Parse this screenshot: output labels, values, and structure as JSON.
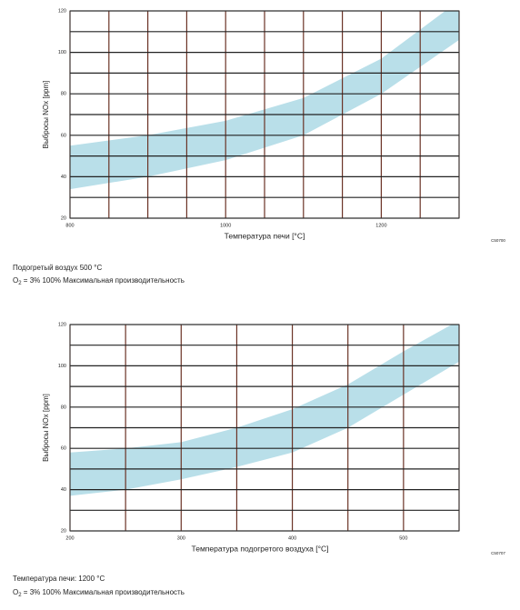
{
  "chart_data": [
    {
      "type": "band",
      "ylabel": "Выбросы NOx [ppm]",
      "xlabel": "Температура печи [°C]",
      "code": "C50700",
      "x": [
        800,
        900,
        1000,
        1100,
        1200,
        1300
      ],
      "upper": [
        55,
        60,
        67,
        78,
        97,
        125
      ],
      "lower": [
        34,
        40,
        48,
        60,
        80,
        106
      ],
      "color": "#b9dfe9",
      "xlim": [
        800,
        1300
      ],
      "xticks": [
        800,
        1000,
        1200
      ],
      "x_minor_ticks": [
        850,
        900,
        950,
        1050,
        1100,
        1150,
        1250,
        1300
      ],
      "ylim": [
        20,
        120
      ],
      "yticks": [
        20,
        40,
        60,
        80,
        100,
        120
      ],
      "y_minor_ticks": [
        30,
        50,
        70,
        90,
        110
      ],
      "grid": true,
      "notes": [
        {
          "text": "Подогретый воздух 500 °C"
        },
        {
          "prefix": "O",
          "sub": "2",
          "text": " = 3% 100% Максимальная производительность"
        }
      ]
    },
    {
      "type": "band",
      "ylabel": "Выбросы NOx [ppm]",
      "xlabel": "Температура подогретого воздуха [°C]",
      "code": "C50707",
      "x": [
        200,
        250,
        300,
        350,
        400,
        450,
        500,
        550
      ],
      "upper": [
        58,
        60,
        63,
        70,
        79,
        91,
        107,
        122
      ],
      "lower": [
        37,
        40,
        45,
        51,
        58,
        70,
        86,
        102
      ],
      "color": "#b9dfe9",
      "xlim": [
        200,
        550
      ],
      "xticks": [
        200,
        300,
        400,
        500
      ],
      "x_minor_ticks": [
        250,
        350,
        450,
        550
      ],
      "ylim": [
        20,
        120
      ],
      "yticks": [
        20,
        40,
        60,
        80,
        100,
        120
      ],
      "y_minor_ticks": [
        30,
        50,
        70,
        90,
        110
      ],
      "grid": true,
      "notes": [
        {
          "text": "Температура печи: 1200 °C"
        },
        {
          "prefix": "O",
          "sub": "2",
          "text": " = 3% 100% Максимальная производительность"
        }
      ]
    }
  ]
}
